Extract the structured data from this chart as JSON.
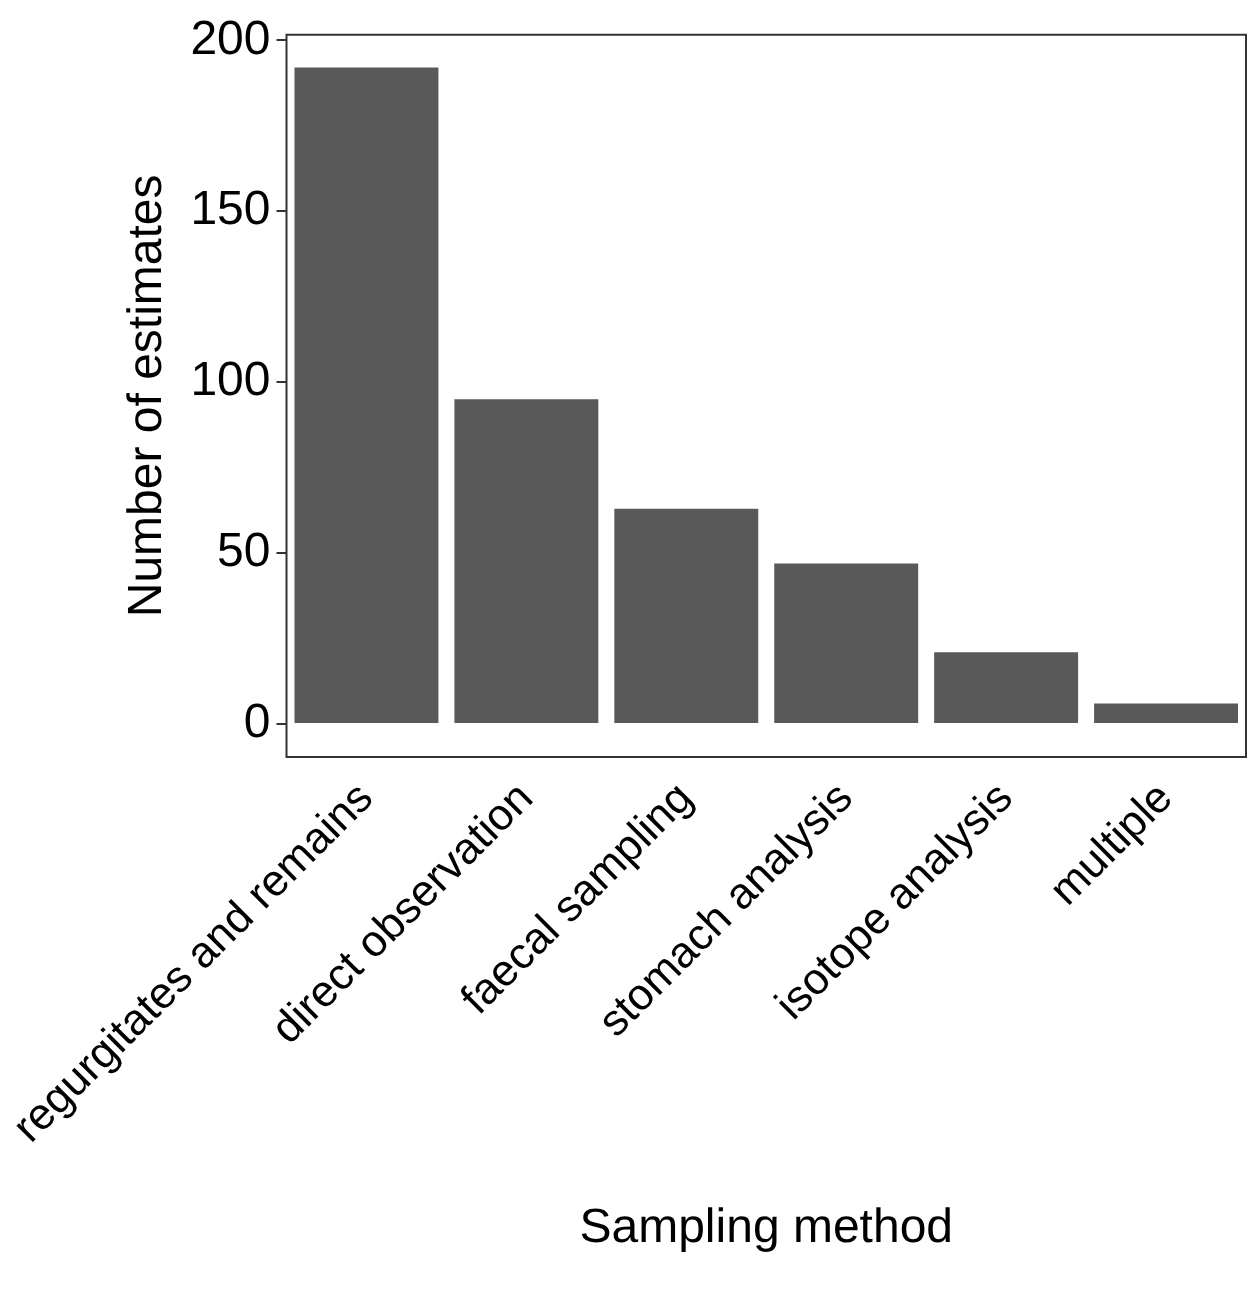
{
  "chart_data": {
    "type": "bar",
    "xlabel": "Sampling method",
    "ylabel": "Number of estimates",
    "categories": [
      "regurgitates and remains",
      "direct observation",
      "faecal sampling",
      "stomach analysis",
      "isotope analysis",
      "multiple"
    ],
    "values": [
      192,
      95,
      63,
      47,
      21,
      6
    ],
    "color": "#595959",
    "ylim": [
      -9.6,
      201.6
    ],
    "yticks": [
      0,
      50,
      100,
      150,
      200
    ],
    "grid": false,
    "legend": false
  }
}
